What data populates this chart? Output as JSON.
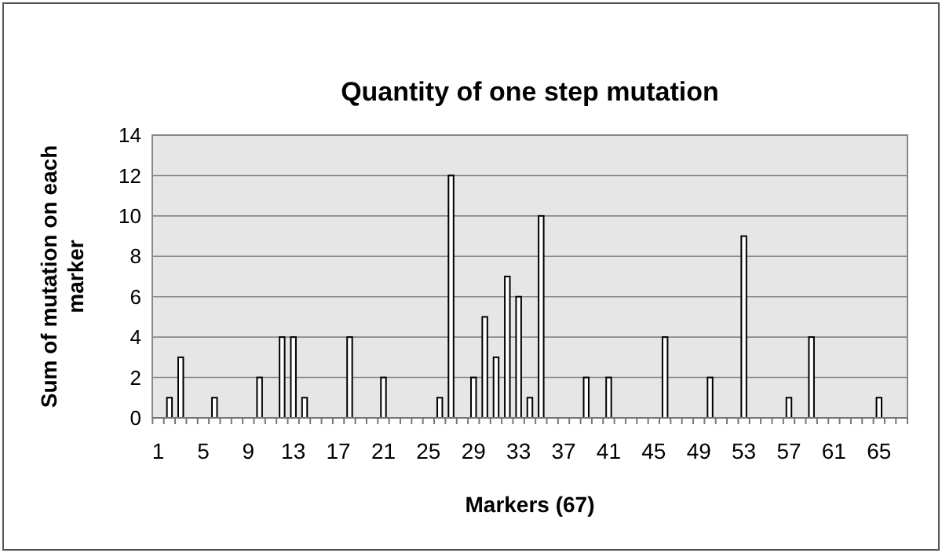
{
  "chart_data": {
    "type": "bar",
    "title": "Quantity of one step mutation",
    "xlabel": "Markers (67)",
    "ylabel": "Sum of mutation on each marker",
    "categories": [
      "1",
      null,
      null,
      null,
      "5",
      null,
      null,
      null,
      "9",
      null,
      null,
      null,
      "13",
      null,
      null,
      null,
      "17",
      null,
      null,
      null,
      "21",
      null,
      null,
      null,
      "25",
      null,
      null,
      null,
      "29",
      null,
      null,
      null,
      "33",
      null,
      null,
      null,
      "37",
      null,
      null,
      null,
      "41",
      null,
      null,
      null,
      "45",
      null,
      null,
      null,
      "49",
      null,
      null,
      null,
      "53",
      null,
      null,
      null,
      "57",
      null,
      null,
      null,
      "61",
      null,
      null,
      null,
      "65",
      null,
      null
    ],
    "values": [
      0,
      1,
      3,
      0,
      0,
      1,
      0,
      0,
      0,
      2,
      0,
      4,
      4,
      1,
      0,
      0,
      0,
      4,
      0,
      0,
      2,
      0,
      0,
      0,
      0,
      1,
      12,
      0,
      2,
      5,
      3,
      7,
      6,
      1,
      10,
      0,
      0,
      0,
      2,
      0,
      2,
      0,
      0,
      0,
      0,
      4,
      0,
      0,
      0,
      2,
      0,
      0,
      9,
      0,
      0,
      0,
      1,
      0,
      4,
      0,
      0,
      0,
      0,
      0,
      1,
      0,
      0
    ],
    "color": "#ffffff",
    "ylim": [
      0,
      14
    ],
    "yticks": [
      0,
      2,
      4,
      6,
      8,
      10,
      12,
      14
    ],
    "grid": "y"
  }
}
